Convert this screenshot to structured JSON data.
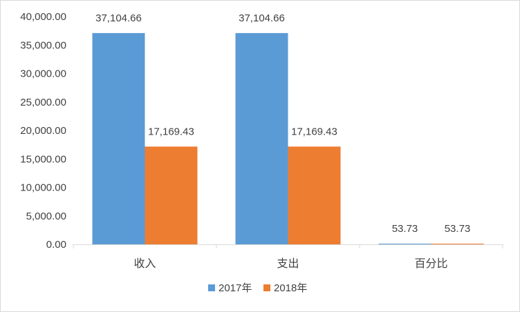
{
  "chart_data": {
    "type": "bar",
    "categories": [
      "收入",
      "支出",
      "百分比"
    ],
    "series": [
      {
        "name": "2017年",
        "values": [
          37104.66,
          37104.66,
          53.73
        ],
        "labels": [
          "37,104.66",
          "37,104.66",
          "53.73"
        ],
        "color": "#5b9bd5"
      },
      {
        "name": "2018年",
        "values": [
          17169.43,
          17169.43,
          53.73
        ],
        "labels": [
          "17,169.43",
          "17,169.43",
          "53.73"
        ],
        "color": "#ed7d31"
      }
    ],
    "ylim": [
      0,
      40000
    ],
    "yticks": [
      0,
      5000,
      10000,
      15000,
      20000,
      25000,
      30000,
      35000,
      40000
    ],
    "ytick_labels": [
      "0.00",
      "5,000.00",
      "10,000.00",
      "15,000.00",
      "20,000.00",
      "25,000.00",
      "30,000.00",
      "35,000.00",
      "40,000.00"
    ],
    "title": "",
    "xlabel": "",
    "ylabel": "",
    "grid": false,
    "legend_position": "bottom"
  }
}
